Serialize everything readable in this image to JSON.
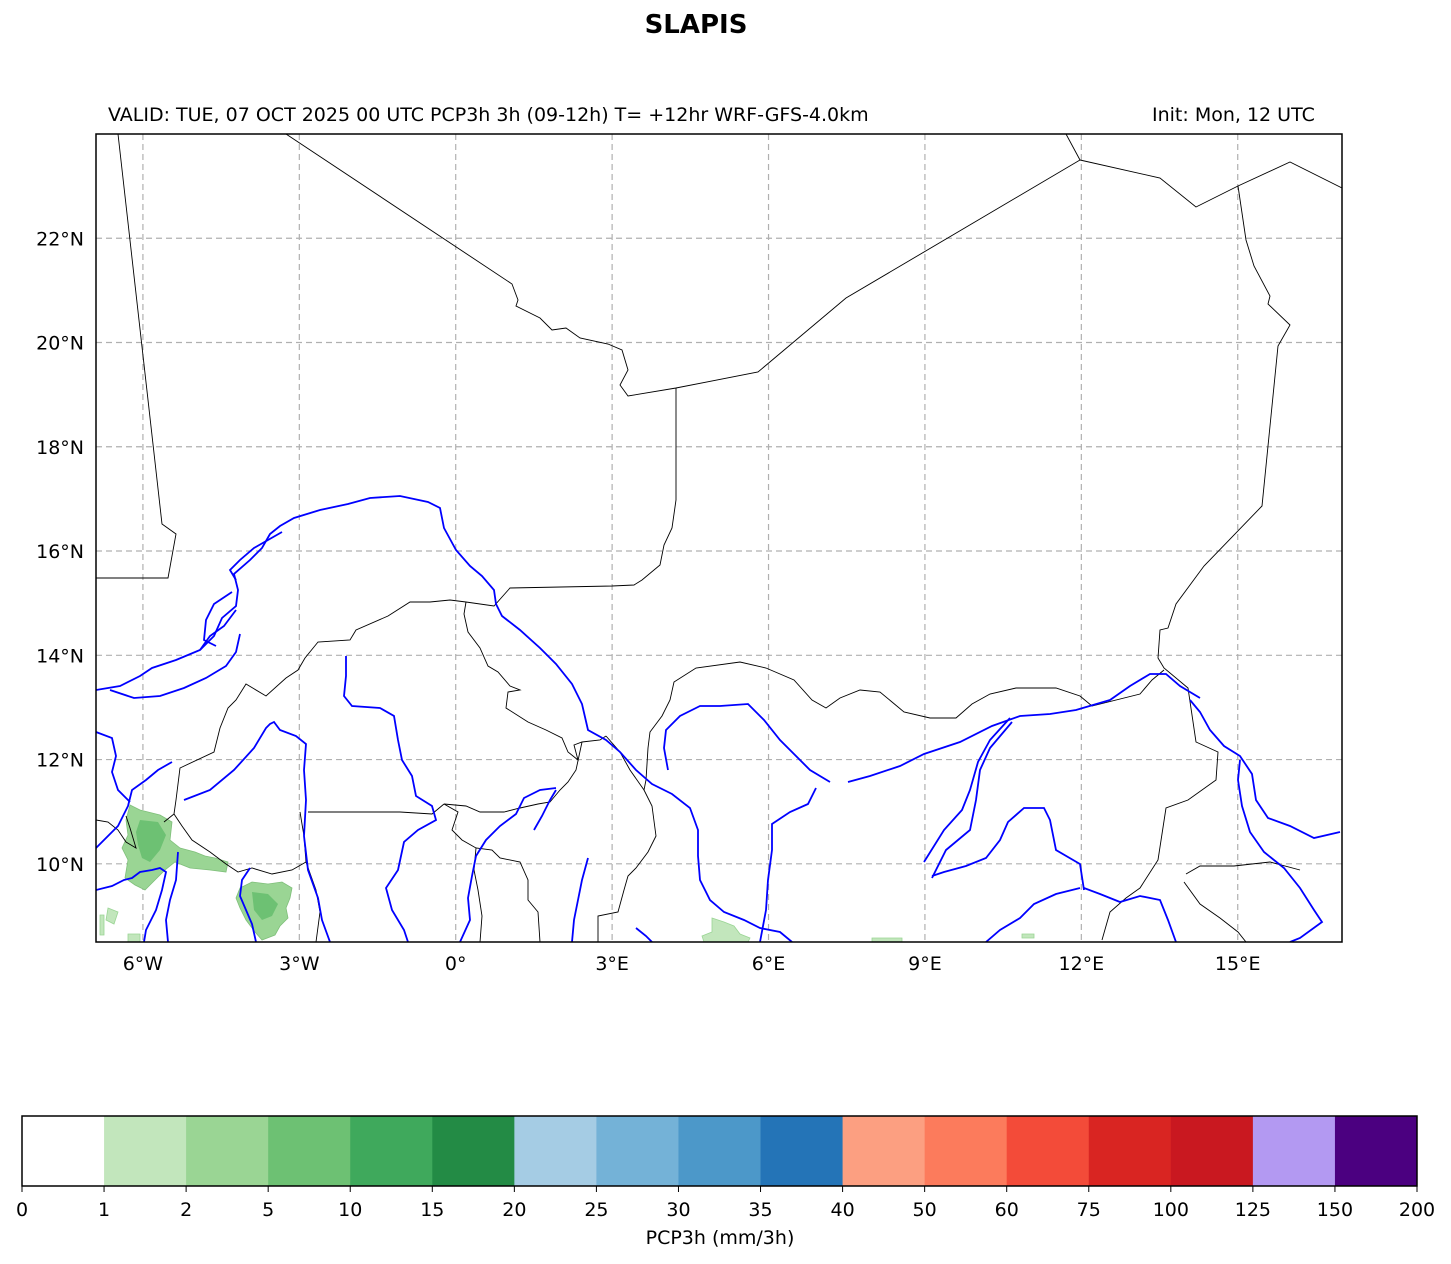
{
  "title": "SLAPIS",
  "subtitle_left": "VALID: TUE, 07 OCT 2025 00 UTC    PCP3h 3h (09-12h) T= +12hr WRF-GFS-4.0km",
  "subtitle_right": "Init: Mon, 12 UTC",
  "map": {
    "lon_range": [
      -6.9,
      17.0
    ],
    "lat_range": [
      8.5,
      24.0
    ],
    "lon_ticks": [
      {
        "value": -6,
        "label": "6°W"
      },
      {
        "value": -3,
        "label": "3°W"
      },
      {
        "value": 0,
        "label": "0°"
      },
      {
        "value": 3,
        "label": "3°E"
      },
      {
        "value": 6,
        "label": "6°E"
      },
      {
        "value": 9,
        "label": "9°E"
      },
      {
        "value": 12,
        "label": "12°E"
      },
      {
        "value": 15,
        "label": "15°E"
      }
    ],
    "lat_ticks": [
      {
        "value": 22,
        "label": "22°N"
      },
      {
        "value": 20,
        "label": "20°N"
      },
      {
        "value": 18,
        "label": "18°N"
      },
      {
        "value": 16,
        "label": "16°N"
      },
      {
        "value": 14,
        "label": "14°N"
      },
      {
        "value": 12,
        "label": "12°N"
      },
      {
        "value": 10,
        "label": "10°N"
      }
    ],
    "grid": true,
    "border_color": "#000000",
    "river_color": "#0000ff",
    "grid_color": "#b0b0b0"
  },
  "colorbar": {
    "label": "PCP3h (mm/3h)",
    "bounds": [
      "0",
      "1",
      "2",
      "5",
      "10",
      "15",
      "20",
      "25",
      "30",
      "35",
      "40",
      "50",
      "60",
      "75",
      "100",
      "125",
      "150",
      "200"
    ],
    "colors": [
      "#ffffff",
      "#c2e6bc",
      "#9ad594",
      "#6dc173",
      "#3fa95c",
      "#238b45",
      "#a5cce4",
      "#74b2d7",
      "#4c98c9",
      "#2474b7",
      "#fc9f81",
      "#fc7b5c",
      "#f34b39",
      "#d92522",
      "#c91820",
      "#b399f2",
      "#4b0080"
    ]
  },
  "precip_colors": [
    "#c2e6bc",
    "#9ad594",
    "#6dc173"
  ]
}
